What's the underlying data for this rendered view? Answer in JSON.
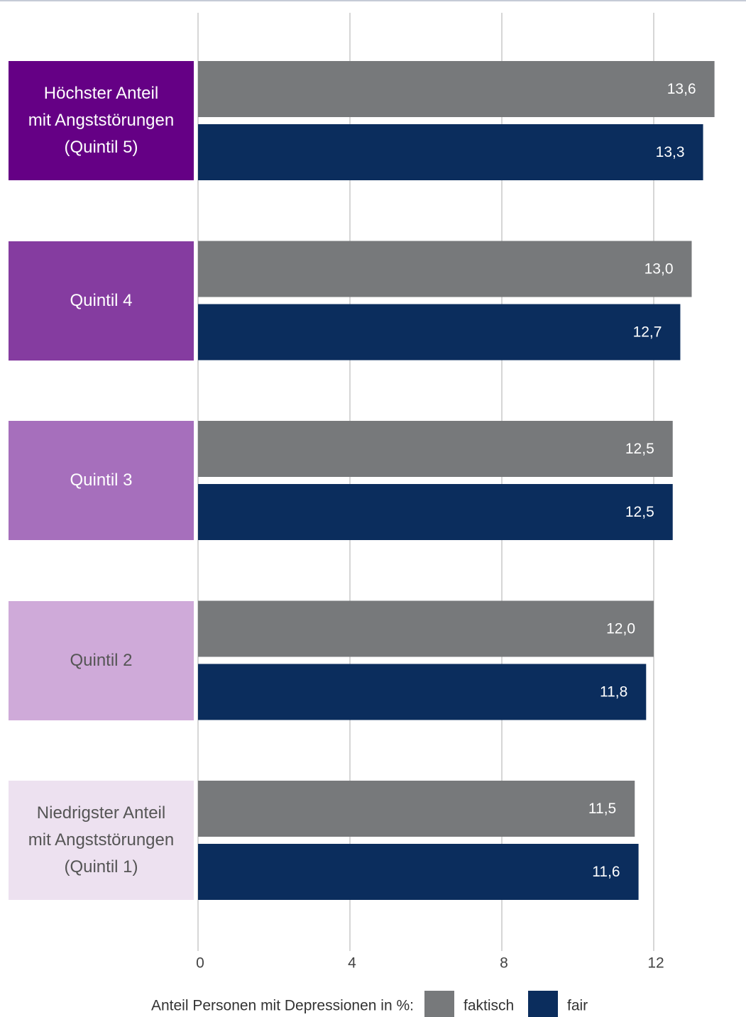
{
  "chart_data": {
    "type": "hbar",
    "categories": [
      "Höchster Anteil\nmit Angststörungen\n(Quintil 5)",
      "Quintil 4",
      "Quintil 3",
      "Quintil 2",
      "Niedrigster Anteil\nmit Angststörungen\n(Quintil 1)"
    ],
    "category_colors": [
      "#650085",
      "#853ca0",
      "#a66fbc",
      "#cfaad9",
      "#ede1f0"
    ],
    "category_text_colors": [
      "#ffffff",
      "#ffffff",
      "#ffffff",
      "#555555",
      "#555555"
    ],
    "series": [
      {
        "name": "faktisch",
        "color": "#77797b",
        "values": [
          13.6,
          13.0,
          12.5,
          12.0,
          11.5
        ],
        "value_labels": [
          "13,6",
          "13,0",
          "12,5",
          "12,0",
          "11,5"
        ]
      },
      {
        "name": "fair",
        "color": "#0b2d5d",
        "values": [
          13.3,
          12.7,
          12.5,
          11.8,
          11.6
        ],
        "value_labels": [
          "13,3",
          "12,7",
          "12,5",
          "11,8",
          "11,6"
        ]
      }
    ],
    "legend_title": "Anteil Personen mit Depressionen in %:",
    "xlim": [
      0,
      14
    ],
    "xticks": [
      0,
      4,
      8,
      12
    ],
    "grid": true
  }
}
